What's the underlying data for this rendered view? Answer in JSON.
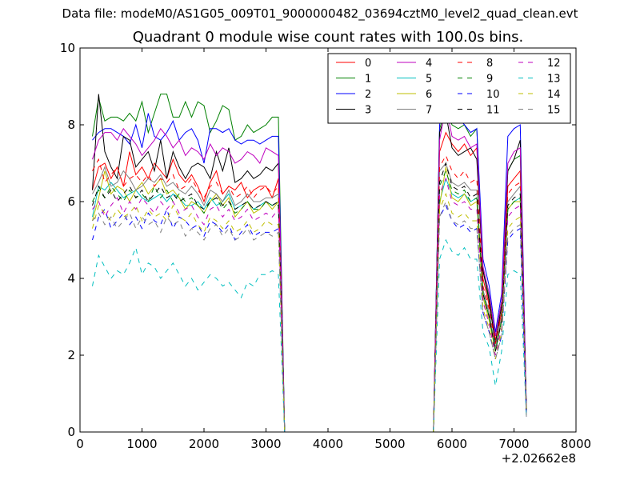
{
  "suptitle": "Data file: modeM0/AS1G05_009T01_9000000482_03694cztM0_level2_quad_clean.evt",
  "chart_data": {
    "type": "line",
    "title": "Quadrant 0 module wise count rates with 100.0s bins.",
    "xlabel": "",
    "ylabel": "",
    "xlim": [
      0,
      8000
    ],
    "ylim": [
      0,
      10
    ],
    "x_offset_label": "+2.02662e8",
    "xticks": [
      "0",
      "1000",
      "2000",
      "3000",
      "4000",
      "5000",
      "6000",
      "7000",
      "8000"
    ],
    "yticks": [
      "0",
      "2",
      "4",
      "6",
      "8",
      "10"
    ],
    "legend_position": "upper right",
    "legend_columns": 4,
    "x": [
      200,
      300,
      400,
      500,
      600,
      700,
      800,
      900,
      1000,
      1100,
      1200,
      1300,
      1400,
      1500,
      1600,
      1700,
      1800,
      1900,
      2000,
      2100,
      2200,
      2300,
      2400,
      2500,
      2600,
      2700,
      2800,
      2900,
      3000,
      3100,
      3200,
      3300,
      3400,
      3500,
      3600,
      3700,
      3800,
      3900,
      4000,
      4100,
      4200,
      4300,
      4400,
      4500,
      4600,
      4700,
      4800,
      4900,
      5000,
      5100,
      5200,
      5300,
      5400,
      5500,
      5600,
      5700,
      5800,
      5900,
      6000,
      6100,
      6200,
      6300,
      6400,
      6500,
      6600,
      6700,
      6800,
      6900,
      7000,
      7100,
      7200
    ],
    "series": [
      {
        "name": "0",
        "color": "#ff0000",
        "dash": "solid",
        "values": [
          6.3,
          6.9,
          7.0,
          6.6,
          6.9,
          6.4,
          7.3,
          6.7,
          6.9,
          6.6,
          7.0,
          6.8,
          6.6,
          7.1,
          6.7,
          6.5,
          6.7,
          6.4,
          6.0,
          6.5,
          6.8,
          6.2,
          6.4,
          6.3,
          6.5,
          6.1,
          6.3,
          6.4,
          6.4,
          6.1,
          6.6,
          0,
          0,
          0,
          0,
          0,
          0,
          0,
          0,
          0,
          0,
          0,
          0,
          0,
          0,
          0,
          0,
          0,
          0,
          0,
          0,
          0,
          0,
          0,
          0,
          0,
          7.3,
          7.8,
          7.5,
          7.3,
          7.5,
          7.2,
          7.4,
          4.0,
          3.3,
          2.4,
          3.1,
          6.4,
          6.6,
          6.8,
          0.5
        ]
      },
      {
        "name": "1",
        "color": "#008000",
        "dash": "solid",
        "values": [
          7.7,
          8.7,
          8.1,
          8.2,
          8.2,
          8.1,
          8.3,
          8.1,
          8.6,
          7.8,
          8.3,
          8.8,
          8.8,
          8.2,
          8.2,
          8.6,
          8.2,
          8.6,
          8.5,
          7.8,
          8.1,
          8.5,
          8.4,
          7.6,
          7.7,
          8.0,
          7.8,
          7.9,
          8.0,
          8.2,
          8.2,
          0,
          0,
          0,
          0,
          0,
          0,
          0,
          0,
          0,
          0,
          0,
          0,
          0,
          0,
          0,
          0,
          0,
          0,
          0,
          0,
          0,
          0,
          0,
          0,
          0,
          7.9,
          8.4,
          8.0,
          7.9,
          8.0,
          7.7,
          7.9,
          4.2,
          3.5,
          2.5,
          3.4,
          6.8,
          7.1,
          7.2,
          0.6
        ]
      },
      {
        "name": "2",
        "color": "#0000ff",
        "dash": "solid",
        "values": [
          7.6,
          7.8,
          7.9,
          7.9,
          7.8,
          7.7,
          7.5,
          8.0,
          7.4,
          8.3,
          7.7,
          7.6,
          7.8,
          8.1,
          7.6,
          7.8,
          7.9,
          7.6,
          7.0,
          7.9,
          7.9,
          7.8,
          7.9,
          7.6,
          7.5,
          7.6,
          7.6,
          7.5,
          7.6,
          7.7,
          7.7,
          0,
          0,
          0,
          0,
          0,
          0,
          0,
          0,
          0,
          0,
          0,
          0,
          0,
          0,
          0,
          0,
          0,
          0,
          0,
          0,
          0,
          0,
          0,
          0,
          0,
          8.0,
          8.6,
          8.1,
          8.2,
          8.0,
          7.8,
          7.9,
          4.5,
          3.8,
          2.6,
          3.6,
          7.7,
          7.9,
          8.0,
          0.6
        ]
      },
      {
        "name": "3",
        "color": "#000000",
        "dash": "solid",
        "values": [
          6.3,
          8.8,
          7.3,
          6.9,
          6.6,
          7.7,
          7.6,
          6.9,
          7.1,
          7.3,
          6.8,
          7.6,
          6.6,
          7.3,
          6.9,
          6.6,
          6.9,
          7.0,
          6.9,
          6.6,
          7.3,
          6.8,
          7.4,
          6.5,
          6.6,
          6.8,
          6.6,
          6.7,
          6.9,
          6.8,
          7.0,
          0,
          0,
          0,
          0,
          0,
          0,
          0,
          0,
          0,
          0,
          0,
          0,
          0,
          0,
          0,
          0,
          0,
          0,
          0,
          0,
          0,
          0,
          0,
          0,
          0,
          7.8,
          8.3,
          7.4,
          7.2,
          7.3,
          7.4,
          7.1,
          4.2,
          3.4,
          2.3,
          3.3,
          6.8,
          7.1,
          7.6,
          0.5
        ]
      },
      {
        "name": "4",
        "color": "#bf00bf",
        "dash": "solid",
        "values": [
          7.1,
          7.6,
          7.8,
          7.8,
          7.6,
          7.9,
          7.7,
          7.5,
          7.2,
          7.4,
          7.6,
          7.9,
          7.7,
          7.4,
          7.6,
          7.2,
          7.4,
          7.3,
          7.1,
          7.5,
          7.2,
          7.4,
          7.3,
          7.0,
          7.1,
          7.3,
          7.2,
          7.0,
          7.4,
          7.3,
          7.2,
          0,
          0,
          0,
          0,
          0,
          0,
          0,
          0,
          0,
          0,
          0,
          0,
          0,
          0,
          0,
          0,
          0,
          0,
          0,
          0,
          0,
          0,
          0,
          0,
          0,
          7.6,
          8.5,
          7.7,
          7.6,
          7.7,
          7.4,
          7.5,
          4.3,
          3.6,
          2.5,
          3.4,
          7.0,
          7.3,
          7.4,
          0.6
        ]
      },
      {
        "name": "5",
        "color": "#00bfbf",
        "dash": "solid",
        "values": [
          5.6,
          6.4,
          6.3,
          6.5,
          6.3,
          6.1,
          6.2,
          6.3,
          6.1,
          6.0,
          6.1,
          6.2,
          6.0,
          6.2,
          6.1,
          5.9,
          5.9,
          6.0,
          5.8,
          6.1,
          5.9,
          6.0,
          6.2,
          5.8,
          5.9,
          6.0,
          5.8,
          5.9,
          6.0,
          5.9,
          6.0,
          0,
          0,
          0,
          0,
          0,
          0,
          0,
          0,
          0,
          0,
          0,
          0,
          0,
          0,
          0,
          0,
          0,
          0,
          0,
          0,
          0,
          0,
          0,
          0,
          0,
          6.0,
          6.6,
          6.2,
          6.1,
          6.2,
          6.0,
          6.1,
          3.6,
          3.0,
          2.2,
          2.9,
          5.8,
          6.0,
          6.1,
          0.5
        ]
      },
      {
        "name": "6",
        "color": "#bfbf00",
        "dash": "solid",
        "values": [
          5.5,
          6.1,
          6.8,
          6.2,
          6.4,
          6.3,
          6.0,
          6.3,
          6.5,
          6.2,
          6.4,
          6.6,
          6.2,
          6.3,
          6.1,
          5.8,
          6.0,
          5.9,
          5.7,
          6.0,
          6.2,
          5.9,
          6.1,
          5.6,
          5.8,
          6.0,
          5.7,
          5.8,
          6.0,
          5.8,
          6.0,
          0,
          0,
          0,
          0,
          0,
          0,
          0,
          0,
          0,
          0,
          0,
          0,
          0,
          0,
          0,
          0,
          0,
          0,
          0,
          0,
          0,
          0,
          0,
          0,
          0,
          5.9,
          6.9,
          6.1,
          6.0,
          6.2,
          5.9,
          6.0,
          3.5,
          2.9,
          2.1,
          2.9,
          5.8,
          6.0,
          6.0,
          0.5
        ]
      },
      {
        "name": "7",
        "color": "#808080",
        "dash": "solid",
        "values": [
          6.2,
          6.5,
          6.9,
          6.4,
          6.5,
          6.8,
          6.6,
          6.3,
          6.4,
          6.6,
          6.5,
          6.7,
          6.4,
          6.5,
          6.3,
          6.2,
          6.4,
          6.2,
          5.9,
          6.3,
          6.2,
          6.0,
          6.3,
          5.9,
          6.0,
          6.2,
          6.0,
          6.0,
          6.1,
          6.1,
          6.2,
          0,
          0,
          0,
          0,
          0,
          0,
          0,
          0,
          0,
          0,
          0,
          0,
          0,
          0,
          0,
          0,
          0,
          0,
          0,
          0,
          0,
          0,
          0,
          0,
          0,
          6.8,
          7.0,
          6.5,
          6.4,
          6.5,
          6.3,
          6.3,
          3.7,
          3.1,
          2.2,
          3.0,
          6.0,
          6.2,
          6.4,
          0.5
        ]
      },
      {
        "name": "8",
        "color": "#ff0000",
        "dash": "dashed",
        "values": [
          6.8,
          7.1,
          6.5,
          6.7,
          6.9,
          6.4,
          6.6,
          6.7,
          6.5,
          6.7,
          6.4,
          6.6,
          6.5,
          6.7,
          6.3,
          6.4,
          6.6,
          6.3,
          6.1,
          6.4,
          6.5,
          6.2,
          6.4,
          6.1,
          6.2,
          6.4,
          6.1,
          6.3,
          6.4,
          6.2,
          6.4,
          0,
          0,
          0,
          0,
          0,
          0,
          0,
          0,
          0,
          0,
          0,
          0,
          0,
          0,
          0,
          0,
          0,
          0,
          0,
          0,
          0,
          0,
          0,
          0,
          0,
          6.9,
          7.2,
          6.8,
          6.6,
          6.8,
          6.5,
          6.6,
          3.8,
          3.2,
          2.3,
          3.1,
          6.2,
          6.4,
          6.5,
          0.5
        ]
      },
      {
        "name": "9",
        "color": "#008000",
        "dash": "dashed",
        "values": [
          6.0,
          6.3,
          6.1,
          6.4,
          6.2,
          6.0,
          6.3,
          6.1,
          6.2,
          6.0,
          6.4,
          6.1,
          6.3,
          6.0,
          6.2,
          6.0,
          6.1,
          5.9,
          5.7,
          6.0,
          6.1,
          5.8,
          6.0,
          5.7,
          5.8,
          6.0,
          5.8,
          5.8,
          6.0,
          5.9,
          5.9,
          0,
          0,
          0,
          0,
          0,
          0,
          0,
          0,
          0,
          0,
          0,
          0,
          0,
          0,
          0,
          0,
          0,
          0,
          0,
          0,
          0,
          0,
          0,
          0,
          0,
          6.4,
          6.8,
          6.3,
          6.2,
          6.3,
          6.0,
          6.1,
          3.6,
          3.0,
          2.1,
          2.9,
          5.8,
          6.0,
          6.1,
          0.5
        ]
      },
      {
        "name": "10",
        "color": "#0000ff",
        "dash": "dashed",
        "values": [
          5.0,
          5.6,
          5.8,
          5.3,
          5.5,
          5.7,
          5.4,
          5.6,
          5.3,
          5.7,
          5.5,
          5.4,
          5.8,
          5.3,
          5.6,
          5.5,
          5.3,
          5.4,
          5.1,
          5.5,
          5.4,
          5.2,
          5.4,
          5.0,
          5.2,
          5.4,
          5.1,
          5.2,
          5.2,
          5.2,
          5.3,
          0,
          0,
          0,
          0,
          0,
          0,
          0,
          0,
          0,
          0,
          0,
          0,
          0,
          0,
          0,
          0,
          0,
          0,
          0,
          0,
          0,
          0,
          0,
          0,
          0,
          5.6,
          5.9,
          5.5,
          5.3,
          5.4,
          5.2,
          5.3,
          3.1,
          2.6,
          1.9,
          2.5,
          5.0,
          5.2,
          5.3,
          0.4
        ]
      },
      {
        "name": "11",
        "color": "#000000",
        "dash": "dashed",
        "values": [
          5.9,
          6.4,
          6.1,
          6.3,
          6.0,
          6.2,
          6.4,
          6.1,
          6.3,
          6.0,
          6.2,
          6.4,
          6.1,
          6.2,
          6.0,
          6.1,
          6.2,
          5.9,
          5.8,
          6.0,
          6.1,
          5.9,
          6.0,
          5.8,
          5.9,
          6.0,
          5.8,
          5.9,
          6.0,
          5.9,
          6.0,
          0,
          0,
          0,
          0,
          0,
          0,
          0,
          0,
          0,
          0,
          0,
          0,
          0,
          0,
          0,
          0,
          0,
          0,
          0,
          0,
          0,
          0,
          0,
          0,
          0,
          6.5,
          7.0,
          6.4,
          6.3,
          6.4,
          6.1,
          6.2,
          3.6,
          3.0,
          2.1,
          2.9,
          5.9,
          6.1,
          6.2,
          0.5
        ]
      },
      {
        "name": "12",
        "color": "#bf00bf",
        "dash": "dashed",
        "values": [
          5.8,
          6.0,
          5.6,
          5.9,
          6.1,
          5.7,
          6.0,
          5.8,
          6.1,
          5.9,
          5.7,
          6.0,
          5.8,
          6.0,
          5.7,
          5.8,
          5.9,
          5.6,
          5.4,
          5.8,
          5.9,
          5.6,
          5.8,
          5.5,
          5.6,
          5.8,
          5.5,
          5.6,
          5.7,
          5.6,
          5.8,
          0,
          0,
          0,
          0,
          0,
          0,
          0,
          0,
          0,
          0,
          0,
          0,
          0,
          0,
          0,
          0,
          0,
          0,
          0,
          0,
          0,
          0,
          0,
          0,
          0,
          6.2,
          6.6,
          6.0,
          5.9,
          6.0,
          5.8,
          5.8,
          3.4,
          2.8,
          2.0,
          2.7,
          5.6,
          5.8,
          5.9,
          0.5
        ]
      },
      {
        "name": "13",
        "color": "#00bfbf",
        "dash": "dashed",
        "values": [
          3.8,
          4.6,
          4.3,
          4.0,
          4.2,
          4.1,
          4.4,
          4.8,
          4.1,
          4.4,
          4.3,
          4.0,
          4.2,
          4.4,
          4.1,
          3.8,
          4.0,
          3.7,
          3.9,
          4.1,
          4.0,
          3.8,
          3.9,
          3.7,
          3.5,
          3.9,
          3.8,
          4.1,
          4.1,
          4.2,
          4.1,
          0,
          0,
          0,
          0,
          0,
          0,
          0,
          0,
          0,
          0,
          0,
          0,
          0,
          0,
          0,
          0,
          0,
          0,
          0,
          0,
          0,
          0,
          0,
          0,
          0,
          4.5,
          5.0,
          4.7,
          4.6,
          4.8,
          4.5,
          4.5,
          2.6,
          2.2,
          1.2,
          2.1,
          4.1,
          4.2,
          4.1,
          0.4
        ]
      },
      {
        "name": "14",
        "color": "#bfbf00",
        "dash": "dashed",
        "values": [
          5.3,
          5.9,
          5.7,
          5.5,
          5.8,
          5.6,
          5.7,
          5.9,
          5.5,
          5.8,
          5.6,
          5.7,
          5.5,
          5.9,
          5.6,
          5.5,
          5.7,
          5.4,
          5.2,
          5.6,
          5.5,
          5.3,
          5.5,
          5.2,
          5.3,
          5.5,
          5.2,
          5.3,
          5.5,
          5.4,
          5.4,
          0,
          0,
          0,
          0,
          0,
          0,
          0,
          0,
          0,
          0,
          0,
          0,
          0,
          0,
          0,
          0,
          0,
          0,
          0,
          0,
          0,
          0,
          0,
          0,
          0,
          5.8,
          6.2,
          5.7,
          5.6,
          5.7,
          5.5,
          5.5,
          3.2,
          2.7,
          1.9,
          2.6,
          5.3,
          5.5,
          5.6,
          0.5
        ]
      },
      {
        "name": "15",
        "color": "#808080",
        "dash": "dashed",
        "values": [
          5.5,
          5.7,
          5.4,
          5.6,
          5.3,
          5.5,
          5.7,
          5.3,
          5.6,
          5.4,
          5.5,
          5.2,
          5.6,
          5.4,
          5.5,
          5.1,
          5.3,
          5.2,
          5.0,
          5.3,
          5.4,
          5.1,
          5.3,
          5.0,
          5.1,
          5.3,
          5.0,
          5.1,
          5.2,
          5.1,
          5.2,
          0,
          0,
          0,
          0,
          0,
          0,
          0,
          0,
          0,
          0,
          0,
          0,
          0,
          0,
          0,
          0,
          0,
          0,
          0,
          0,
          0,
          0,
          0,
          0,
          0,
          5.6,
          6.0,
          5.5,
          5.4,
          5.5,
          5.3,
          5.3,
          3.1,
          2.6,
          1.9,
          2.5,
          5.1,
          5.3,
          5.4,
          0.4
        ]
      }
    ]
  }
}
